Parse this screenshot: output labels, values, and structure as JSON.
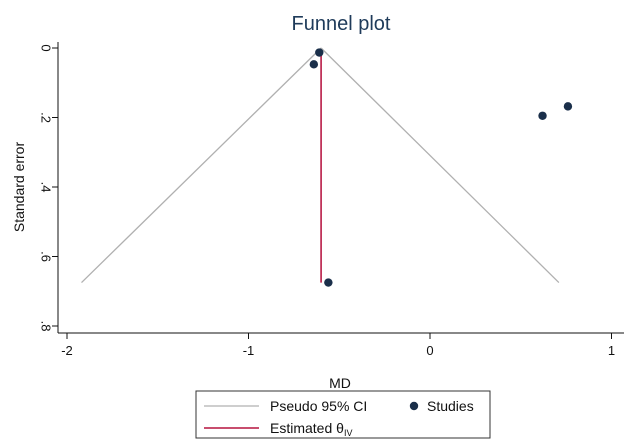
{
  "chart_data": {
    "type": "scatter",
    "title": "Funnel plot",
    "xlabel": "MD",
    "ylabel": "Standard error",
    "xlim": [
      -2.05,
      1.05
    ],
    "ylim": [
      0,
      0.8
    ],
    "y_reversed": true,
    "x_ticks": [
      {
        "value": -2,
        "label": "-2"
      },
      {
        "value": -1,
        "label": "-1"
      },
      {
        "value": 0,
        "label": "0"
      },
      {
        "value": 1,
        "label": "1"
      }
    ],
    "y_ticks": [
      {
        "value": 0,
        "label": "0"
      },
      {
        "value": 0.2,
        "label": ".2"
      },
      {
        "value": 0.4,
        "label": ".4"
      },
      {
        "value": 0.6,
        "label": ".6"
      },
      {
        "value": 0.8,
        "label": ".8"
      }
    ],
    "grid": false,
    "legend": {
      "placement": "bottom",
      "entries": [
        {
          "label": "Pseudo 95% CI",
          "kind": "line",
          "color": "#b0b0b0"
        },
        {
          "label": "Studies",
          "kind": "marker",
          "color": "#1a2f4a"
        },
        {
          "label": "Estimated θ",
          "subscript": "IV",
          "kind": "line",
          "color": "#c0345a"
        }
      ]
    },
    "estimate": {
      "x": -0.6,
      "y_top": 0.015,
      "y_bottom": 0.675
    },
    "pseudo_ci": {
      "apex": [
        -0.6,
        0
      ],
      "left": [
        -1.92,
        0.675
      ],
      "right": [
        0.71,
        0.675
      ]
    },
    "studies": [
      {
        "x": -0.61,
        "y": 0.013
      },
      {
        "x": -0.64,
        "y": 0.047
      },
      {
        "x": 0.62,
        "y": 0.195
      },
      {
        "x": 0.76,
        "y": 0.168
      },
      {
        "x": -0.56,
        "y": 0.675
      }
    ],
    "colors": {
      "ci_line": "#b0b0b0",
      "estimate_line": "#c0345a",
      "marker": "#1a2f4a",
      "title": "#1f3b5a",
      "axis": "#111111"
    }
  }
}
